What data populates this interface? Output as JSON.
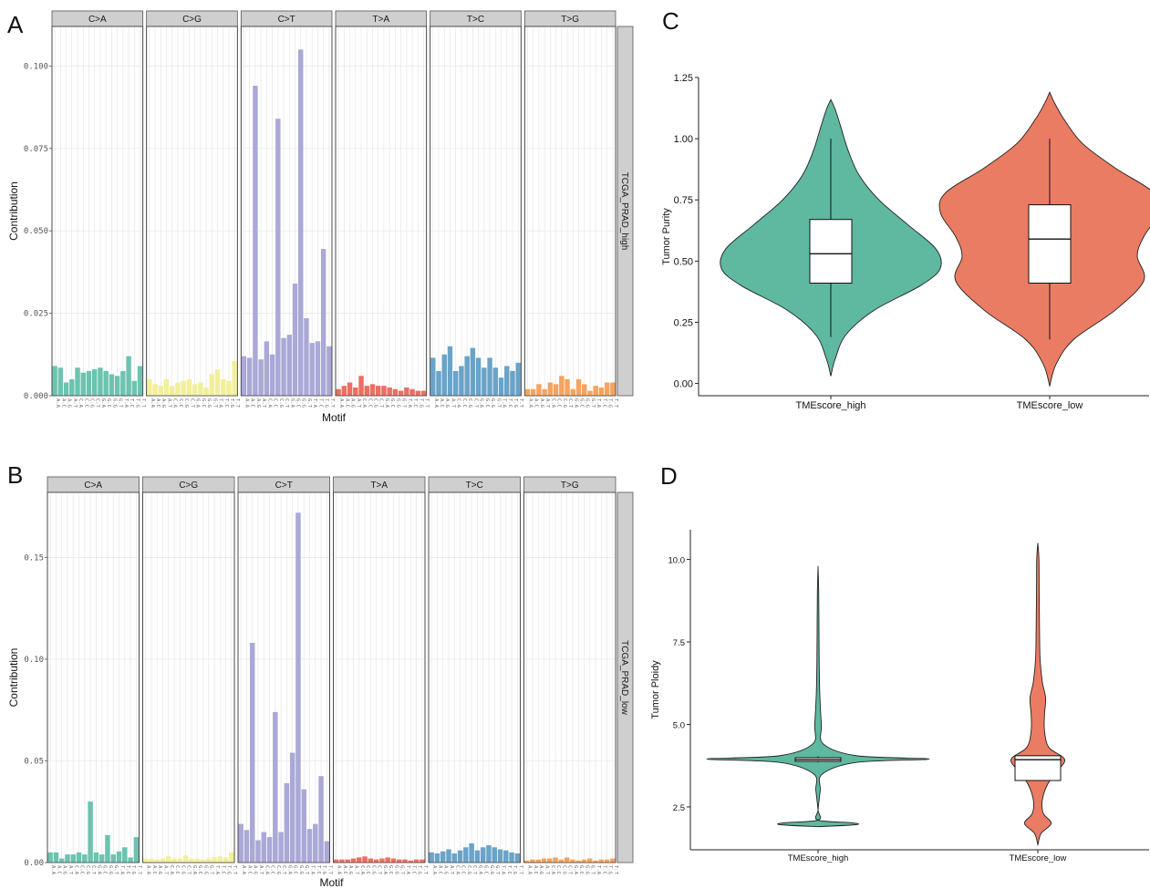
{
  "panels": {
    "a": "A",
    "b": "B",
    "c": "C",
    "d": "D"
  },
  "chart_data": [
    {
      "id": "A",
      "type": "bar",
      "facet_label": "TCGA_PRAD_high",
      "xlabel": "Motif",
      "ylabel": "Contribution",
      "ylim": [
        0,
        0.112
      ],
      "yticks": [
        0.0,
        0.025,
        0.05,
        0.075,
        0.1
      ],
      "ytick_labels": [
        "0.000",
        "0.025",
        "0.050",
        "0.075",
        "0.100"
      ],
      "grid": true,
      "facets": [
        {
          "name": "C>A",
          "color": "#6cc3b0",
          "categories": [
            "A.A",
            "A.C",
            "A.G",
            "A.T",
            "C.A",
            "C.C",
            "C.G",
            "C.T",
            "G.A",
            "G.C",
            "G.G",
            "G.T",
            "T.A",
            "T.C",
            "T.G",
            "T.T"
          ],
          "values": [
            0.009,
            0.0085,
            0.004,
            0.005,
            0.0085,
            0.007,
            0.0075,
            0.008,
            0.0085,
            0.0075,
            0.0065,
            0.006,
            0.0075,
            0.012,
            0.0045,
            0.009
          ]
        },
        {
          "name": "C>G",
          "color": "#f2ef9c",
          "categories": [
            "A.A",
            "A.C",
            "A.G",
            "A.T",
            "C.A",
            "C.C",
            "C.G",
            "C.T",
            "G.A",
            "G.C",
            "G.G",
            "G.T",
            "T.A",
            "T.C",
            "T.G",
            "T.T"
          ],
          "values": [
            0.005,
            0.0035,
            0.003,
            0.005,
            0.003,
            0.004,
            0.0045,
            0.005,
            0.0035,
            0.004,
            0.0025,
            0.0065,
            0.008,
            0.005,
            0.0045,
            0.0105
          ]
        },
        {
          "name": "C>T",
          "color": "#aaa8d6",
          "categories": [
            "A.A",
            "A.C",
            "A.G",
            "A.T",
            "C.A",
            "C.C",
            "C.G",
            "C.T",
            "G.A",
            "G.C",
            "G.G",
            "G.T",
            "T.A",
            "T.C",
            "T.G",
            "T.T"
          ],
          "values": [
            0.012,
            0.0115,
            0.094,
            0.011,
            0.0165,
            0.0125,
            0.084,
            0.0175,
            0.0185,
            0.034,
            0.105,
            0.0235,
            0.016,
            0.0165,
            0.0445,
            0.015
          ]
        },
        {
          "name": "T>A",
          "color": "#ec6e62",
          "categories": [
            "A.A",
            "A.C",
            "A.G",
            "A.T",
            "C.A",
            "C.C",
            "C.G",
            "C.T",
            "G.A",
            "G.C",
            "G.G",
            "G.T",
            "T.A",
            "T.C",
            "T.G",
            "T.T"
          ],
          "values": [
            0.002,
            0.003,
            0.004,
            0.0025,
            0.006,
            0.003,
            0.0035,
            0.003,
            0.003,
            0.0025,
            0.002,
            0.0015,
            0.0025,
            0.002,
            0.0015,
            0.0015
          ]
        },
        {
          "name": "T>C",
          "color": "#6aa3c8",
          "categories": [
            "A.A",
            "A.C",
            "A.G",
            "A.T",
            "C.A",
            "C.C",
            "C.G",
            "C.T",
            "G.A",
            "G.C",
            "G.G",
            "G.T",
            "T.A",
            "T.C",
            "T.G",
            "T.T"
          ],
          "values": [
            0.0115,
            0.0075,
            0.0125,
            0.015,
            0.0075,
            0.009,
            0.012,
            0.0145,
            0.0115,
            0.0085,
            0.0115,
            0.0085,
            0.0055,
            0.009,
            0.0075,
            0.01
          ]
        },
        {
          "name": "T>G",
          "color": "#f6a35f",
          "categories": [
            "A.A",
            "A.C",
            "A.G",
            "A.T",
            "C.A",
            "C.C",
            "C.G",
            "C.T",
            "G.A",
            "G.C",
            "G.G",
            "G.T",
            "T.A",
            "T.C",
            "T.G",
            "T.T"
          ],
          "values": [
            0.002,
            0.002,
            0.0035,
            0.002,
            0.004,
            0.0035,
            0.006,
            0.005,
            0.002,
            0.005,
            0.0035,
            0.0015,
            0.003,
            0.0025,
            0.004,
            0.004
          ]
        }
      ]
    },
    {
      "id": "B",
      "type": "bar",
      "facet_label": "TCGA_PRAD_low",
      "xlabel": "Motif",
      "ylabel": "Contribution",
      "ylim": [
        0,
        0.182
      ],
      "yticks": [
        0.0,
        0.05,
        0.1,
        0.15
      ],
      "ytick_labels": [
        "0.00",
        "0.05",
        "0.10",
        "0.15"
      ],
      "grid": true,
      "facets": [
        {
          "name": "C>A",
          "color": "#6cc3b0",
          "categories": [
            "A.A",
            "A.C",
            "A.G",
            "A.T",
            "C.A",
            "C.C",
            "C.G",
            "C.T",
            "G.A",
            "G.C",
            "G.G",
            "G.T",
            "T.A",
            "T.C",
            "T.G",
            "T.T"
          ],
          "values": [
            0.005,
            0.005,
            0.002,
            0.004,
            0.004,
            0.005,
            0.004,
            0.03,
            0.005,
            0.004,
            0.0135,
            0.004,
            0.0055,
            0.0075,
            0.0025,
            0.0125
          ]
        },
        {
          "name": "C>G",
          "color": "#f2ef9c",
          "categories": [
            "A.A",
            "A.C",
            "A.G",
            "A.T",
            "C.A",
            "C.C",
            "C.G",
            "C.T",
            "G.A",
            "G.C",
            "G.G",
            "G.T",
            "T.A",
            "T.C",
            "T.G",
            "T.T"
          ],
          "values": [
            0.002,
            0.002,
            0.0015,
            0.002,
            0.003,
            0.002,
            0.002,
            0.0035,
            0.002,
            0.002,
            0.0015,
            0.002,
            0.0025,
            0.003,
            0.0025,
            0.005
          ]
        },
        {
          "name": "C>T",
          "color": "#aaa8d6",
          "categories": [
            "A.A",
            "A.C",
            "A.G",
            "A.T",
            "C.A",
            "C.C",
            "C.G",
            "C.T",
            "G.A",
            "G.C",
            "G.G",
            "G.T",
            "T.A",
            "T.C",
            "T.G",
            "T.T"
          ],
          "values": [
            0.019,
            0.016,
            0.108,
            0.011,
            0.015,
            0.0125,
            0.074,
            0.015,
            0.039,
            0.054,
            0.172,
            0.036,
            0.0165,
            0.019,
            0.0425,
            0.0105
          ]
        },
        {
          "name": "T>A",
          "color": "#ec6e62",
          "categories": [
            "A.A",
            "A.C",
            "A.G",
            "A.T",
            "C.A",
            "C.C",
            "C.G",
            "C.T",
            "G.A",
            "G.C",
            "G.G",
            "G.T",
            "T.A",
            "T.C",
            "T.G",
            "T.T"
          ],
          "values": [
            0.0015,
            0.0015,
            0.0015,
            0.002,
            0.0025,
            0.003,
            0.002,
            0.0015,
            0.002,
            0.0025,
            0.002,
            0.0015,
            0.0015,
            0.001,
            0.0015,
            0.0015
          ]
        },
        {
          "name": "T>C",
          "color": "#6aa3c8",
          "categories": [
            "A.A",
            "A.C",
            "A.G",
            "A.T",
            "C.A",
            "C.C",
            "C.G",
            "C.T",
            "G.A",
            "G.C",
            "G.G",
            "G.T",
            "T.A",
            "T.C",
            "T.G",
            "T.T"
          ],
          "values": [
            0.005,
            0.0045,
            0.0055,
            0.0065,
            0.0045,
            0.006,
            0.0075,
            0.0095,
            0.006,
            0.0075,
            0.0085,
            0.0075,
            0.0065,
            0.006,
            0.005,
            0.0045
          ]
        },
        {
          "name": "T>G",
          "color": "#f6a35f",
          "categories": [
            "A.A",
            "A.C",
            "A.G",
            "A.T",
            "C.A",
            "C.C",
            "C.G",
            "C.T",
            "G.A",
            "G.C",
            "G.G",
            "G.T",
            "T.A",
            "T.C",
            "T.G",
            "T.T"
          ],
          "values": [
            0.001,
            0.0015,
            0.0015,
            0.002,
            0.002,
            0.0025,
            0.0015,
            0.0025,
            0.0015,
            0.001,
            0.0015,
            0.002,
            0.001,
            0.0015,
            0.0015,
            0.002
          ]
        }
      ]
    },
    {
      "id": "C",
      "type": "violin",
      "xlabel": "",
      "ylabel": "Tumor Purity",
      "ylim": [
        -0.05,
        1.25
      ],
      "yticks": [
        0.0,
        0.25,
        0.5,
        0.75,
        1.0,
        1.25
      ],
      "ytick_labels": [
        "0.00",
        "0.25",
        "0.50",
        "0.75",
        "1.00",
        "1.25"
      ],
      "grid": false,
      "categories": [
        "TMEscore_high",
        "TMEscore_low"
      ],
      "groups": [
        {
          "name": "TMEscore_high",
          "color": "#5fb8a0",
          "box": {
            "whisker_low": 0.19,
            "q1": 0.41,
            "median": 0.53,
            "q3": 0.67,
            "whisker_high": 1.0
          },
          "density": [
            [
              0.03,
              0.0
            ],
            [
              0.1,
              0.04
            ],
            [
              0.2,
              0.14
            ],
            [
              0.3,
              0.4
            ],
            [
              0.4,
              0.82
            ],
            [
              0.47,
              1.0
            ],
            [
              0.55,
              0.96
            ],
            [
              0.65,
              0.7
            ],
            [
              0.75,
              0.44
            ],
            [
              0.85,
              0.26
            ],
            [
              0.95,
              0.16
            ],
            [
              1.05,
              0.09
            ],
            [
              1.12,
              0.04
            ],
            [
              1.16,
              0.0
            ]
          ]
        },
        {
          "name": "TMEscore_low",
          "color": "#ea7c63",
          "box": {
            "whisker_low": 0.18,
            "q1": 0.41,
            "median": 0.59,
            "q3": 0.73,
            "whisker_high": 1.0
          },
          "density": [
            [
              -0.01,
              0.0
            ],
            [
              0.08,
              0.06
            ],
            [
              0.18,
              0.22
            ],
            [
              0.3,
              0.6
            ],
            [
              0.42,
              0.86
            ],
            [
              0.52,
              0.8
            ],
            [
              0.6,
              0.86
            ],
            [
              0.7,
              1.0
            ],
            [
              0.78,
              0.95
            ],
            [
              0.88,
              0.6
            ],
            [
              0.98,
              0.3
            ],
            [
              1.08,
              0.13
            ],
            [
              1.15,
              0.04
            ],
            [
              1.19,
              0.0
            ]
          ]
        }
      ]
    },
    {
      "id": "D",
      "type": "violin",
      "xlabel": "",
      "ylabel": "Tumor Ploidy",
      "ylim": [
        1.2,
        10.9
      ],
      "yticks": [
        2.5,
        5.0,
        7.5,
        10.0
      ],
      "ytick_labels": [
        "2.5",
        "5.0",
        "7.5",
        "10.0"
      ],
      "grid": false,
      "categories": [
        "TMEscore_high",
        "TMEscore_low"
      ],
      "groups": [
        {
          "name": "TMEscore_high",
          "color": "#5fb8a0",
          "box": {
            "whisker_low": 3.85,
            "q1": 3.88,
            "median": 3.93,
            "q3": 3.99,
            "whisker_high": 4.03
          },
          "density": [
            [
              1.9,
              0.0
            ],
            [
              1.96,
              0.34
            ],
            [
              2.02,
              0.3
            ],
            [
              2.1,
              0.0
            ],
            [
              2.4,
              0.0
            ],
            [
              3.0,
              0.02
            ],
            [
              3.5,
              0.04
            ],
            [
              3.85,
              0.35
            ],
            [
              3.95,
              1.0
            ],
            [
              4.05,
              0.35
            ],
            [
              4.4,
              0.05
            ],
            [
              5.0,
              0.03
            ],
            [
              6.0,
              0.015
            ],
            [
              7.0,
              0.01
            ],
            [
              8.0,
              0.008
            ],
            [
              9.0,
              0.006
            ],
            [
              9.8,
              0.0
            ]
          ]
        },
        {
          "name": "TMEscore_low",
          "color": "#ea7c63",
          "box": {
            "whisker_low": 3.3,
            "q1": 3.3,
            "median": 3.93,
            "q3": 4.05,
            "whisker_high": 4.05
          },
          "density": [
            [
              1.35,
              0.0
            ],
            [
              1.7,
              0.03
            ],
            [
              2.0,
              0.12
            ],
            [
              2.3,
              0.05
            ],
            [
              2.7,
              0.04
            ],
            [
              3.2,
              0.09
            ],
            [
              3.6,
              0.18
            ],
            [
              3.95,
              0.24
            ],
            [
              4.3,
              0.1
            ],
            [
              4.8,
              0.06
            ],
            [
              5.3,
              0.06
            ],
            [
              5.8,
              0.07
            ],
            [
              6.3,
              0.04
            ],
            [
              7.0,
              0.02
            ],
            [
              8.0,
              0.015
            ],
            [
              9.0,
              0.012
            ],
            [
              10.0,
              0.01
            ],
            [
              10.5,
              0.0
            ]
          ]
        }
      ]
    }
  ]
}
